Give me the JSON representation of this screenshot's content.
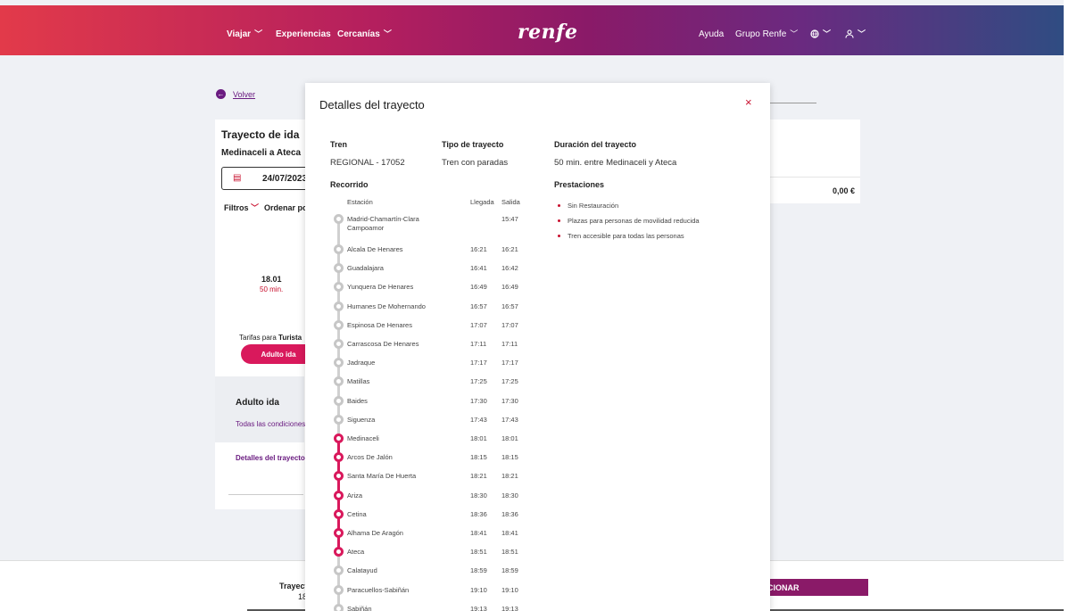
{
  "header": {
    "nav_left": [
      "Viajar",
      "Experiencias",
      "Cercanías"
    ],
    "logo": "renfe",
    "nav_right": [
      "Ayuda",
      "Grupo Renfe"
    ]
  },
  "background": {
    "back_label": "Volver",
    "trip_title": "Trayecto de ida",
    "route": "Medinaceli a Ateca",
    "date": "24/07/2023",
    "filters_label": "Filtros",
    "sort_label": "Ordenar po",
    "dep_time": "18.01",
    "duration": "50 min.",
    "tarifas_prefix": "Tarifas para ",
    "tarifas_class": "Turista",
    "fare_button": "Adulto ida",
    "adult_title": "Adulto ida",
    "conditions_link": "Todas las condiciones",
    "details_link": "Detalles del trayecto",
    "price": "0,00 €",
    "footer_trayecto": "Trayect",
    "footer_num": "18",
    "footer_button": "CIONAR"
  },
  "modal": {
    "title": "Detalles del trayecto",
    "close": "×",
    "tren_label": "Tren",
    "tren_value": "REGIONAL - 17052",
    "tipo_label": "Tipo de trayecto",
    "tipo_value": "Tren con paradas",
    "duracion_label": "Duración del trayecto",
    "duracion_value": "50 min. entre Medinaceli y Ateca",
    "recorrido_label": "Recorrido",
    "prestaciones_label": "Prestaciones",
    "prestaciones": [
      "Sin Restauración",
      "Plazas para personas de movilidad reducida",
      "Tren accesible para todas las personas"
    ],
    "col_station": "Estación",
    "col_arrival": "Llegada",
    "col_departure": "Salida",
    "stops": [
      {
        "name": "Madrid-Chamartín-Clara Campoamor",
        "arr": "",
        "dep": "15:47",
        "active": false
      },
      {
        "name": "Alcala De Henares",
        "arr": "16:21",
        "dep": "16:21",
        "active": false
      },
      {
        "name": "Guadalajara",
        "arr": "16:41",
        "dep": "16:42",
        "active": false
      },
      {
        "name": "Yunquera De Henares",
        "arr": "16:49",
        "dep": "16:49",
        "active": false
      },
      {
        "name": "Humanes De Mohernando",
        "arr": "16:57",
        "dep": "16:57",
        "active": false
      },
      {
        "name": "Espinosa De Henares",
        "arr": "17:07",
        "dep": "17:07",
        "active": false
      },
      {
        "name": "Carrascosa De Henares",
        "arr": "17:11",
        "dep": "17:11",
        "active": false
      },
      {
        "name": "Jadraque",
        "arr": "17:17",
        "dep": "17:17",
        "active": false
      },
      {
        "name": "Matillas",
        "arr": "17:25",
        "dep": "17:25",
        "active": false
      },
      {
        "name": "Baides",
        "arr": "17:30",
        "dep": "17:30",
        "active": false
      },
      {
        "name": "Siguenza",
        "arr": "17:43",
        "dep": "17:43",
        "active": false
      },
      {
        "name": "Medinaceli",
        "arr": "18:01",
        "dep": "18:01",
        "active": true
      },
      {
        "name": "Arcos De Jalón",
        "arr": "18:15",
        "dep": "18:15",
        "active": true
      },
      {
        "name": "Santa María De Huerta",
        "arr": "18:21",
        "dep": "18:21",
        "active": true
      },
      {
        "name": "Ariza",
        "arr": "18:30",
        "dep": "18:30",
        "active": true
      },
      {
        "name": "Cetina",
        "arr": "18:36",
        "dep": "18:36",
        "active": true
      },
      {
        "name": "Alhama De Aragón",
        "arr": "18:41",
        "dep": "18:41",
        "active": true
      },
      {
        "name": "Ateca",
        "arr": "18:51",
        "dep": "18:51",
        "active": true
      },
      {
        "name": "Calatayud",
        "arr": "18:59",
        "dep": "18:59",
        "active": false
      },
      {
        "name": "Paracuellos-Sabiñán",
        "arr": "19:10",
        "dep": "19:10",
        "active": false
      },
      {
        "name": "Sabiñán",
        "arr": "19:13",
        "dep": "19:13",
        "active": false
      }
    ]
  },
  "colors": {
    "brand_red": "#d9195c",
    "brand_purple": "#8a1a68",
    "stop_inactive": "#c7c7c7"
  }
}
